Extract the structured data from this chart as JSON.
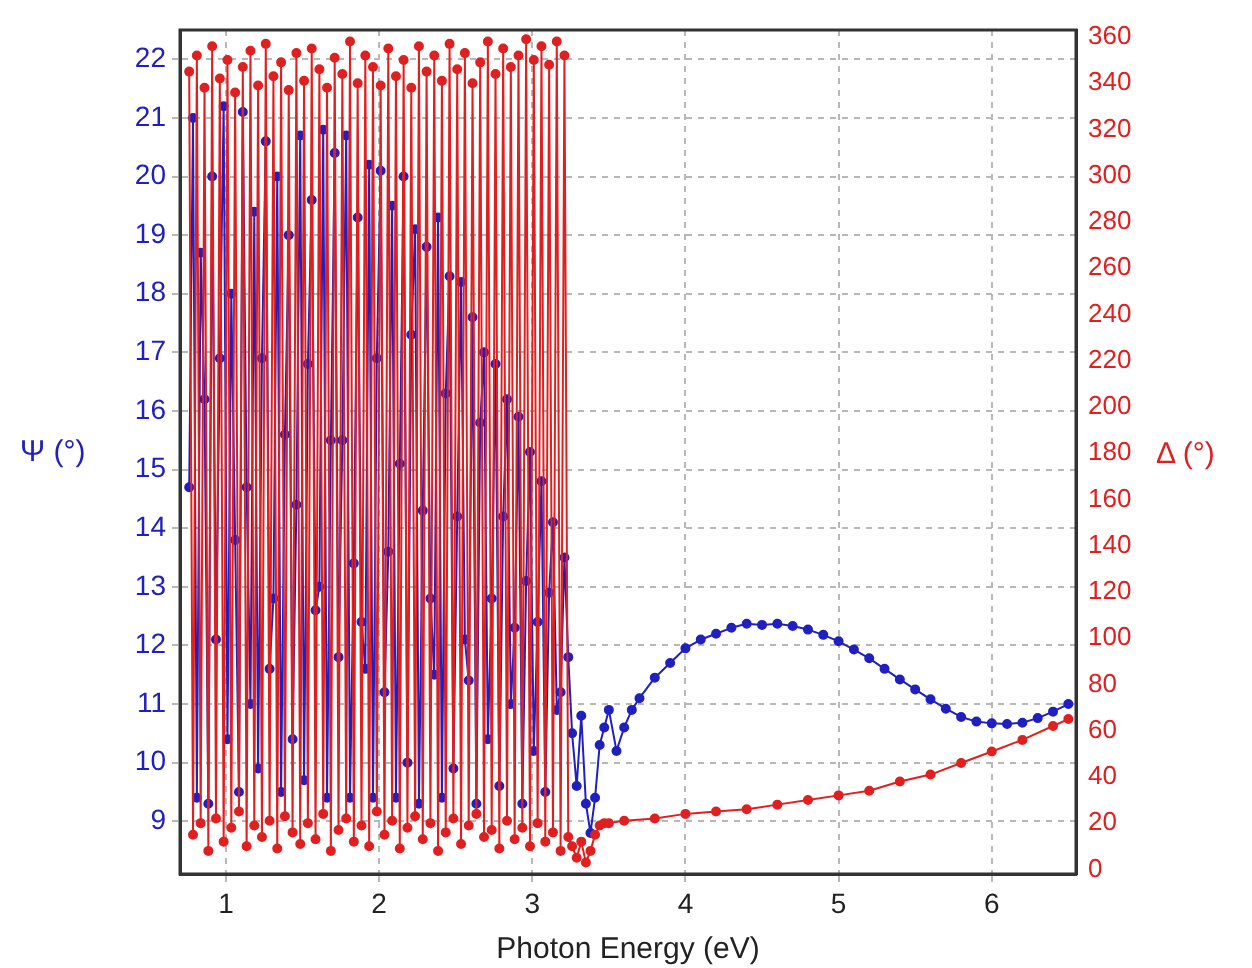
{
  "chart_data": {
    "type": "line",
    "xlabel": "Photon Energy (eV)",
    "ylabel": "Ψ (°)",
    "y2label": "Δ (°)",
    "xlim": [
      0.7,
      6.55
    ],
    "xticks": [
      1,
      2,
      3,
      4,
      5,
      6
    ],
    "ylim": [
      8.1,
      22.5
    ],
    "yticks": [
      9,
      10,
      11,
      12,
      13,
      14,
      15,
      16,
      17,
      18,
      19,
      20,
      21,
      22
    ],
    "y2lim": [
      -2,
      363
    ],
    "y2ticks": [
      0,
      20,
      40,
      60,
      80,
      100,
      120,
      140,
      160,
      180,
      200,
      220,
      240,
      260,
      280,
      300,
      320,
      340,
      360
    ],
    "grid": true,
    "legend": false,
    "marker": "circle",
    "line_style": "solid",
    "series": [
      {
        "color": "#e02020",
        "axis": "y2",
        "x": [
          0.76,
          0.785,
          0.81,
          0.835,
          0.86,
          0.885,
          0.91,
          0.935,
          0.96,
          0.985,
          1.01,
          1.035,
          1.06,
          1.085,
          1.11,
          1.135,
          1.16,
          1.185,
          1.21,
          1.235,
          1.26,
          1.285,
          1.31,
          1.335,
          1.36,
          1.385,
          1.41,
          1.435,
          1.46,
          1.485,
          1.51,
          1.535,
          1.56,
          1.585,
          1.61,
          1.635,
          1.66,
          1.685,
          1.71,
          1.735,
          1.76,
          1.785,
          1.81,
          1.835,
          1.86,
          1.885,
          1.91,
          1.935,
          1.96,
          1.985,
          2.01,
          2.035,
          2.06,
          2.085,
          2.11,
          2.135,
          2.16,
          2.185,
          2.21,
          2.235,
          2.26,
          2.285,
          2.31,
          2.335,
          2.36,
          2.385,
          2.41,
          2.435,
          2.46,
          2.485,
          2.51,
          2.535,
          2.56,
          2.585,
          2.61,
          2.635,
          2.66,
          2.685,
          2.71,
          2.735,
          2.76,
          2.785,
          2.81,
          2.835,
          2.86,
          2.885,
          2.91,
          2.935,
          2.96,
          2.985,
          3.01,
          3.035,
          3.06,
          3.085,
          3.11,
          3.135,
          3.16,
          3.185,
          3.21,
          3.235,
          3.26,
          3.29,
          3.32,
          3.35,
          3.38,
          3.41,
          3.44,
          3.47,
          3.5,
          3.6,
          3.8,
          4.0,
          4.2,
          4.4,
          4.6,
          4.8,
          5.0,
          5.2,
          5.4,
          5.6,
          5.8,
          6.0,
          6.2,
          6.4,
          6.5
        ],
        "values": [
          345,
          15,
          352,
          20,
          338,
          8,
          356,
          22,
          342,
          12,
          350,
          18,
          336,
          25,
          347,
          10,
          354,
          19,
          339,
          14,
          357,
          21,
          343,
          9,
          349,
          23,
          337,
          16,
          353,
          11,
          341,
          20,
          355,
          13,
          346,
          24,
          338,
          8,
          351,
          17,
          344,
          22,
          358,
          12,
          340,
          19,
          352,
          10,
          347,
          25,
          339,
          15,
          355,
          21,
          343,
          9,
          350,
          18,
          338,
          23,
          356,
          13,
          345,
          20,
          352,
          8,
          341,
          16,
          357,
          22,
          346,
          11,
          353,
          19,
          340,
          24,
          349,
          14,
          358,
          17,
          344,
          9,
          355,
          21,
          347,
          13,
          352,
          18,
          359,
          10,
          350,
          20,
          356,
          12,
          348,
          16,
          358,
          8,
          352,
          14,
          10,
          5,
          12,
          3,
          8,
          15,
          19,
          20,
          20,
          21,
          22,
          24,
          25,
          26,
          28,
          30,
          32,
          34,
          38,
          41,
          46,
          51,
          56,
          62,
          65
        ]
      },
      {
        "color": "#2020c0",
        "x": [
          0.76,
          0.785,
          0.81,
          0.835,
          0.86,
          0.885,
          0.91,
          0.935,
          0.96,
          0.985,
          1.01,
          1.035,
          1.06,
          1.085,
          1.11,
          1.135,
          1.16,
          1.185,
          1.21,
          1.235,
          1.26,
          1.285,
          1.31,
          1.335,
          1.36,
          1.385,
          1.41,
          1.435,
          1.46,
          1.485,
          1.51,
          1.535,
          1.56,
          1.585,
          1.61,
          1.635,
          1.66,
          1.685,
          1.71,
          1.735,
          1.76,
          1.785,
          1.81,
          1.835,
          1.86,
          1.885,
          1.91,
          1.935,
          1.96,
          1.985,
          2.01,
          2.035,
          2.06,
          2.085,
          2.11,
          2.135,
          2.16,
          2.185,
          2.21,
          2.235,
          2.26,
          2.285,
          2.31,
          2.335,
          2.36,
          2.385,
          2.41,
          2.435,
          2.46,
          2.485,
          2.51,
          2.535,
          2.56,
          2.585,
          2.61,
          2.635,
          2.66,
          2.685,
          2.71,
          2.735,
          2.76,
          2.785,
          2.81,
          2.835,
          2.86,
          2.885,
          2.91,
          2.935,
          2.96,
          2.985,
          3.01,
          3.035,
          3.06,
          3.085,
          3.11,
          3.135,
          3.16,
          3.185,
          3.21,
          3.235,
          3.26,
          3.29,
          3.32,
          3.35,
          3.38,
          3.41,
          3.44,
          3.47,
          3.5,
          3.55,
          3.6,
          3.65,
          3.7,
          3.8,
          3.9,
          4.0,
          4.1,
          4.2,
          4.3,
          4.4,
          4.5,
          4.6,
          4.7,
          4.8,
          4.9,
          5.0,
          5.1,
          5.2,
          5.3,
          5.4,
          5.5,
          5.6,
          5.7,
          5.8,
          5.9,
          6.0,
          6.1,
          6.2,
          6.3,
          6.4,
          6.5
        ],
        "values": [
          14.7,
          21.0,
          9.4,
          18.7,
          16.2,
          9.3,
          20.0,
          12.1,
          16.9,
          21.2,
          10.4,
          18.0,
          13.8,
          9.5,
          21.1,
          14.7,
          11.0,
          19.4,
          9.9,
          16.9,
          20.6,
          11.6,
          12.8,
          20.0,
          9.5,
          15.6,
          19.0,
          10.4,
          14.4,
          20.7,
          9.7,
          16.8,
          19.6,
          12.6,
          13.0,
          20.8,
          9.4,
          15.5,
          20.4,
          11.8,
          15.5,
          20.7,
          9.4,
          13.4,
          19.3,
          12.4,
          11.6,
          20.2,
          9.4,
          16.9,
          20.1,
          11.2,
          13.6,
          19.5,
          9.4,
          15.1,
          20.0,
          10.0,
          17.3,
          19.1,
          9.3,
          14.3,
          18.8,
          12.8,
          11.5,
          19.3,
          9.4,
          16.3,
          18.3,
          9.9,
          14.2,
          18.2,
          12.1,
          11.4,
          17.6,
          9.3,
          15.8,
          17.0,
          10.4,
          12.8,
          16.8,
          9.6,
          14.2,
          16.2,
          11.0,
          12.3,
          15.9,
          9.3,
          13.1,
          15.3,
          10.2,
          12.4,
          14.8,
          9.5,
          12.9,
          14.1,
          10.9,
          11.2,
          13.5,
          11.8,
          10.5,
          9.6,
          10.8,
          9.3,
          8.8,
          9.4,
          10.3,
          10.6,
          10.9,
          10.2,
          10.6,
          10.9,
          11.1,
          11.45,
          11.7,
          11.95,
          12.1,
          12.2,
          12.3,
          12.37,
          12.35,
          12.37,
          12.33,
          12.27,
          12.18,
          12.07,
          11.93,
          11.78,
          11.6,
          11.42,
          11.25,
          11.08,
          10.92,
          10.78,
          10.7,
          10.67,
          10.66,
          10.68,
          10.76,
          10.87,
          11.0
        ]
      }
    ]
  }
}
